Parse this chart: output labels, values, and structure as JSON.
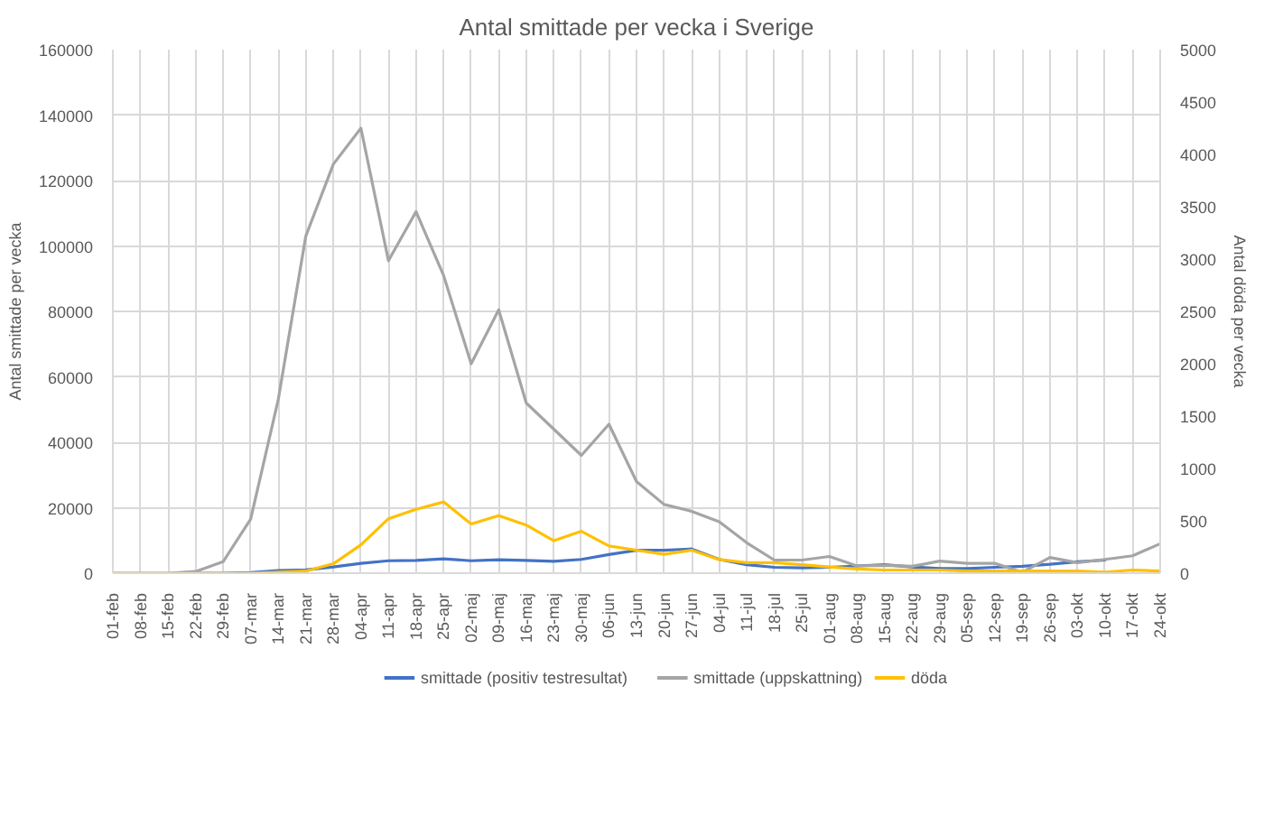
{
  "chart_data": {
    "type": "line",
    "title": "Antal smittade per vecka i Sverige",
    "ylabel": "Antal smittade per vecka",
    "y2label": "Antal döda per vecka",
    "categories": [
      "01-feb",
      "08-feb",
      "15-feb",
      "22-feb",
      "29-feb",
      "07-mar",
      "14-mar",
      "21-mar",
      "28-mar",
      "04-apr",
      "11-apr",
      "18-apr",
      "25-apr",
      "02-maj",
      "09-maj",
      "16-maj",
      "23-maj",
      "30-maj",
      "06-jun",
      "13-jun",
      "20-jun",
      "27-jun",
      "04-jul",
      "11-jul",
      "18-jul",
      "25-jul",
      "01-aug",
      "08-aug",
      "15-aug",
      "22-aug",
      "29-aug",
      "05-sep",
      "12-sep",
      "19-sep",
      "26-sep",
      "03-okt",
      "10-okt",
      "17-okt",
      "24-okt"
    ],
    "series": [
      {
        "name": "smittade (positiv testresultat)",
        "color": "#4472c4",
        "values": [
          null,
          null,
          null,
          0,
          0,
          200,
          800,
          1000,
          1900,
          3000,
          3800,
          3900,
          4400,
          3800,
          4100,
          3900,
          3600,
          4200,
          5700,
          7000,
          7000,
          7400,
          4200,
          2600,
          1800,
          1600,
          1800,
          2200,
          2600,
          1900,
          1400,
          1400,
          1800,
          2100,
          2700,
          3500,
          4000,
          null,
          null
        ]
      },
      {
        "name": "smittade (uppskattning)",
        "color": "#a5a5a5",
        "values": [
          0,
          0,
          0,
          500,
          3500,
          16500,
          53000,
          103000,
          125000,
          136000,
          95500,
          110500,
          91000,
          64000,
          80500,
          52000,
          44000,
          36000,
          45500,
          28000,
          21000,
          18900,
          15700,
          9300,
          4000,
          4000,
          5100,
          2200,
          2400,
          2100,
          3700,
          3000,
          3000,
          300,
          4800,
          3200,
          4200,
          5300,
          9000
        ]
      },
      {
        "name": "döda",
        "color": "#ffc000",
        "axis": "y2",
        "values": [
          0,
          0,
          0,
          0,
          0,
          0,
          10,
          20,
          90,
          270,
          520,
          610,
          680,
          470,
          550,
          460,
          310,
          400,
          260,
          220,
          180,
          220,
          130,
          100,
          100,
          80,
          60,
          40,
          30,
          30,
          30,
          20,
          20,
          20,
          20,
          20,
          10,
          30,
          20
        ]
      }
    ],
    "ylim": [
      0,
      160000
    ],
    "yticks": [
      0,
      20000,
      40000,
      60000,
      80000,
      100000,
      120000,
      140000,
      160000
    ],
    "y2lim": [
      0,
      5000
    ],
    "y2ticks": [
      0,
      500,
      1000,
      1500,
      2000,
      2500,
      3000,
      3500,
      4000,
      4500,
      5000
    ],
    "grid": true,
    "legend": "bottom"
  }
}
